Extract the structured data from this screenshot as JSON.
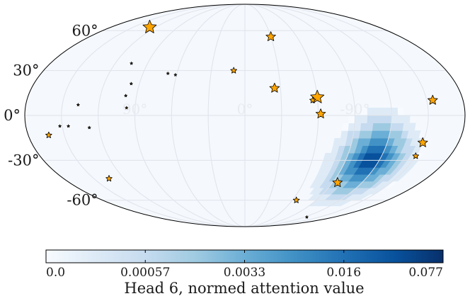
{
  "chart_data": {
    "type": "scatter",
    "projection": "mollweide",
    "title": "",
    "lat_labels": [
      {
        "text": "60°",
        "lat": 60
      },
      {
        "text": "30°",
        "lat": 30
      },
      {
        "text": "0°",
        "lat": 0
      },
      {
        "text": "-30°",
        "lat": -30
      },
      {
        "text": "-60°",
        "lat": -60
      }
    ],
    "lon_labels": [
      {
        "text": "90°",
        "lon": 90
      },
      {
        "text": "0°",
        "lon": 0
      },
      {
        "text": "-90°",
        "lon": -90
      }
    ],
    "graticule": {
      "lon_step": 30,
      "lat_step": 30
    },
    "heatmap": {
      "name": "Head 6 attention",
      "center": {
        "lon": -112,
        "lat": -30
      },
      "peak_value": 0.077,
      "extent_deg": 40
    },
    "stars": [
      {
        "lon": 128,
        "lat": 63,
        "size": 3
      },
      {
        "lon": -30,
        "lat": 55,
        "size": 2
      },
      {
        "lon": -25,
        "lat": 18,
        "size": 2
      },
      {
        "lon": -60,
        "lat": 12,
        "size": 3
      },
      {
        "lon": -56,
        "lat": 10,
        "size": 1
      },
      {
        "lon": -62,
        "lat": 1,
        "size": 2
      },
      {
        "lon": -155,
        "lat": 10,
        "size": 2
      },
      {
        "lon": -150,
        "lat": -18,
        "size": 2
      },
      {
        "lon": -150,
        "lat": -27,
        "size": 1
      },
      {
        "lon": -95,
        "lat": -46,
        "size": 2
      },
      {
        "lon": -65,
        "lat": -60,
        "size": 1
      },
      {
        "lon": 10,
        "lat": 30,
        "size": 1
      },
      {
        "lon": 163,
        "lat": -13,
        "size": 1
      },
      {
        "lon": 135,
        "lat": -43,
        "size": 1
      },
      {
        "lon": 105,
        "lat": 35,
        "size": 0
      },
      {
        "lon": 97,
        "lat": 21,
        "size": 0
      },
      {
        "lon": 99,
        "lat": 13,
        "size": 0
      },
      {
        "lon": 97,
        "lat": 5,
        "size": 0
      },
      {
        "lon": 68,
        "lat": 28,
        "size": 0
      },
      {
        "lon": 61,
        "lat": 27,
        "size": 0
      },
      {
        "lon": 137,
        "lat": 7,
        "size": 0
      },
      {
        "lon": 145,
        "lat": -7,
        "size": 0
      },
      {
        "lon": 152,
        "lat": -7,
        "size": 0
      },
      {
        "lon": 128,
        "lat": -8,
        "size": 0
      },
      {
        "lon": -125,
        "lat": -76,
        "size": 0
      }
    ],
    "colorbar": {
      "label": "Head 6, normed attention value",
      "ticks": [
        "0.0",
        "0.00057",
        "0.0033",
        "0.016",
        "0.077"
      ],
      "colormap": "Blues"
    }
  },
  "colors": {
    "star_fill": "#ffa500",
    "star_stroke": "#000000",
    "background": "#f5f9fe",
    "grid": "#dfe3ea"
  }
}
